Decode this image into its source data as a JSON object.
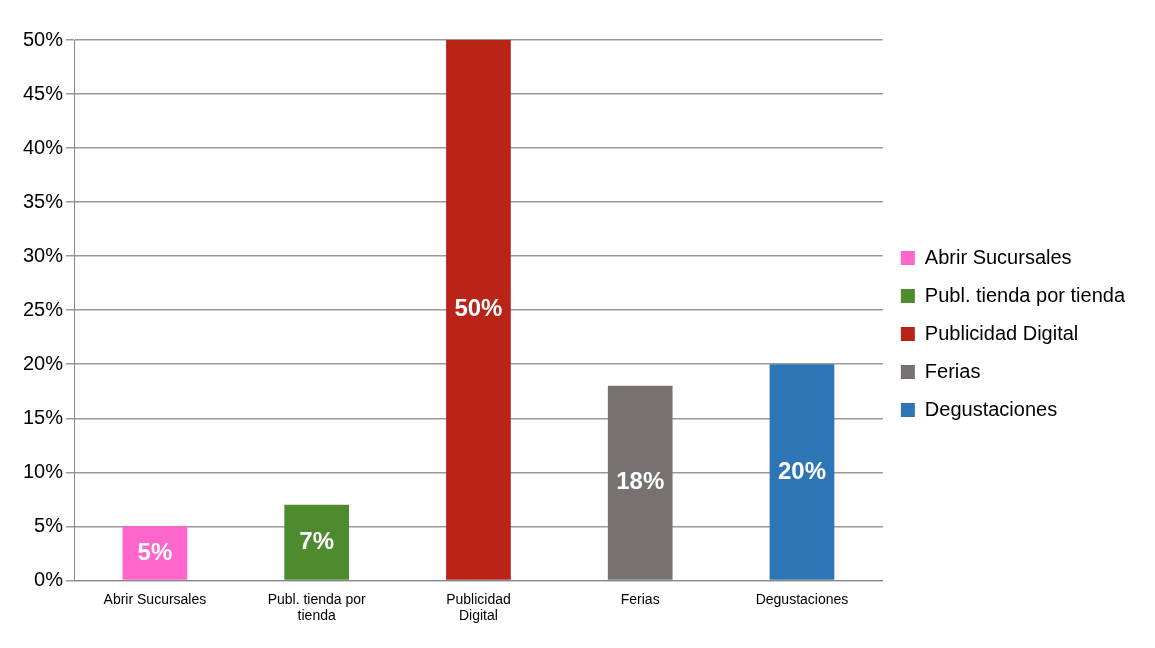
{
  "chart_data": {
    "type": "bar",
    "categories": [
      "Abrir Sucursales",
      "Publ. tienda por tienda",
      "Publicidad Digital",
      "Ferias",
      "Degustaciones"
    ],
    "series": [
      {
        "name": "Abrir Sucursales",
        "color": "#ff66cc",
        "values": [
          5,
          null,
          null,
          null,
          null
        ],
        "value_labels": [
          "5%",
          null,
          null,
          null,
          null
        ]
      },
      {
        "name": "Publ. tienda por tienda",
        "color": "#4e8a2e",
        "values": [
          null,
          7,
          null,
          null,
          null
        ],
        "value_labels": [
          null,
          "7%",
          null,
          null,
          null
        ]
      },
      {
        "name": "Publicidad Digital",
        "color": "#b92318",
        "values": [
          null,
          null,
          50,
          null,
          null
        ],
        "value_labels": [
          null,
          null,
          "50%",
          null,
          null
        ]
      },
      {
        "name": "Ferias",
        "color": "#777271",
        "values": [
          null,
          null,
          null,
          18,
          null
        ],
        "value_labels": [
          null,
          null,
          null,
          "18%",
          null
        ]
      },
      {
        "name": "Degustaciones",
        "color": "#2e75b6",
        "values": [
          null,
          null,
          null,
          null,
          20
        ],
        "value_labels": [
          null,
          null,
          null,
          null,
          "20%"
        ]
      }
    ],
    "ylim": [
      0,
      50
    ],
    "yticks": [
      {
        "value": 0,
        "label": "0%"
      },
      {
        "value": 5,
        "label": "5%"
      },
      {
        "value": 10,
        "label": "10%"
      },
      {
        "value": 15,
        "label": "15%"
      },
      {
        "value": 20,
        "label": "20%"
      },
      {
        "value": 25,
        "label": "25%"
      },
      {
        "value": 30,
        "label": "30%"
      },
      {
        "value": 35,
        "label": "35%"
      },
      {
        "value": 40,
        "label": "40%"
      },
      {
        "value": 45,
        "label": "45%"
      },
      {
        "value": 50,
        "label": "50%"
      }
    ],
    "grid": "y",
    "legend": "right"
  }
}
